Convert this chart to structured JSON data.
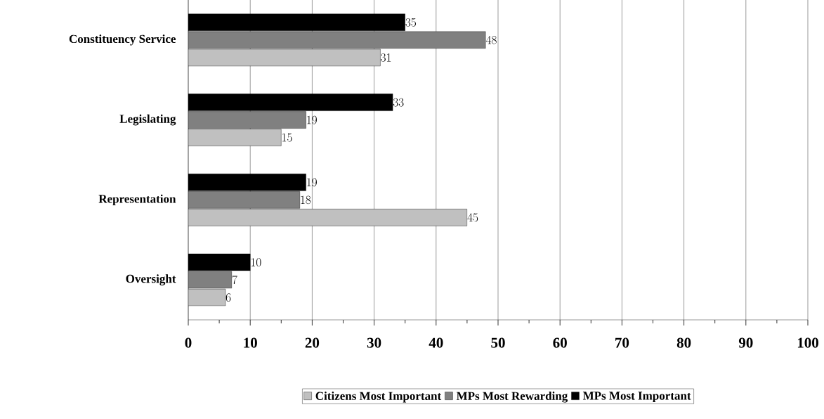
{
  "chart_data": {
    "type": "bar",
    "orientation": "horizontal",
    "categories": [
      "Constituency Service",
      "Legislating",
      "Representation",
      "Oversight"
    ],
    "series": [
      {
        "name": "Citizens Most Important",
        "color": "#c0c0c0",
        "values": [
          31,
          15,
          45,
          6
        ]
      },
      {
        "name": "MPs Most Rewarding",
        "color": "#808080",
        "values": [
          48,
          19,
          18,
          7
        ]
      },
      {
        "name": "MPs Most Important",
        "color": "#000000",
        "values": [
          35,
          33,
          19,
          10
        ]
      }
    ],
    "xlim": [
      0,
      100
    ],
    "xticks": [
      0,
      10,
      20,
      30,
      40,
      50,
      60,
      70,
      80,
      90,
      100
    ],
    "grid": "x",
    "legend": "bottom",
    "data_labels": true
  }
}
